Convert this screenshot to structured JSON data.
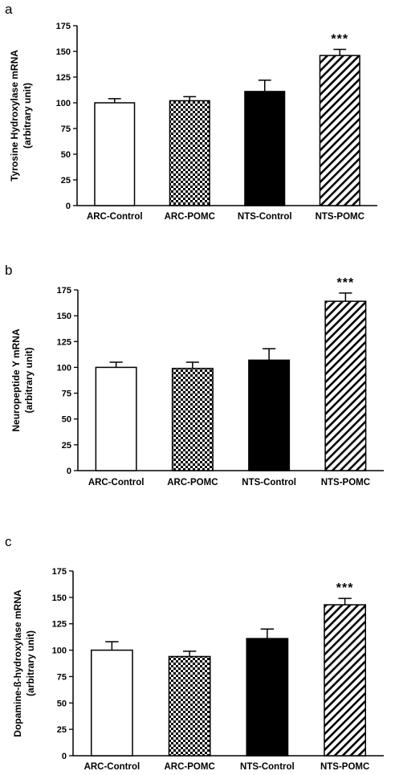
{
  "chart_data": [
    {
      "type": "bar",
      "panel_label": "a",
      "categories": [
        "ARC-Control",
        "ARC-POMC",
        "NTS-Control",
        "NTS-POMC"
      ],
      "values": [
        100,
        102,
        111,
        146
      ],
      "errors": [
        4,
        4,
        11,
        6
      ],
      "ylabel": "Tyrosine Hydroxylase mRNA",
      "ylabel_sub": "(arbitrary unit)",
      "ylim": [
        0,
        175
      ],
      "yticks": [
        0,
        25,
        50,
        75,
        100,
        125,
        150,
        175
      ],
      "patterns": [
        "white",
        "checker",
        "black",
        "hatch"
      ],
      "annotation": {
        "text": "***",
        "category": "NTS-POMC"
      }
    },
    {
      "type": "bar",
      "panel_label": "b",
      "categories": [
        "ARC-Control",
        "ARC-POMC",
        "NTS-Control",
        "NTS-POMC"
      ],
      "values": [
        100,
        99,
        107,
        164
      ],
      "errors": [
        5,
        6,
        11,
        8
      ],
      "ylabel": "Neuropeptide Y mRNA",
      "ylabel_sub": "(arbitrary unit)",
      "ylim": [
        0,
        175
      ],
      "yticks": [
        0,
        25,
        50,
        75,
        100,
        125,
        150,
        175
      ],
      "patterns": [
        "white",
        "checker",
        "black",
        "hatch"
      ],
      "annotation": {
        "text": "***",
        "category": "NTS-POMC"
      }
    },
    {
      "type": "bar",
      "panel_label": "c",
      "categories": [
        "ARC-Control",
        "ARC-POMC",
        "NTS-Control",
        "NTS-POMC"
      ],
      "values": [
        100,
        94,
        111,
        143
      ],
      "errors": [
        8,
        5,
        9,
        6
      ],
      "ylabel": "Dopamine-ß-hydroxylase mRNA",
      "ylabel_sub": "(arbitrary unit)",
      "ylim": [
        0,
        175
      ],
      "yticks": [
        0,
        25,
        50,
        75,
        100,
        125,
        150,
        175
      ],
      "patterns": [
        "white",
        "checker",
        "black",
        "hatch"
      ],
      "annotation": {
        "text": "***",
        "category": "NTS-POMC"
      }
    }
  ]
}
